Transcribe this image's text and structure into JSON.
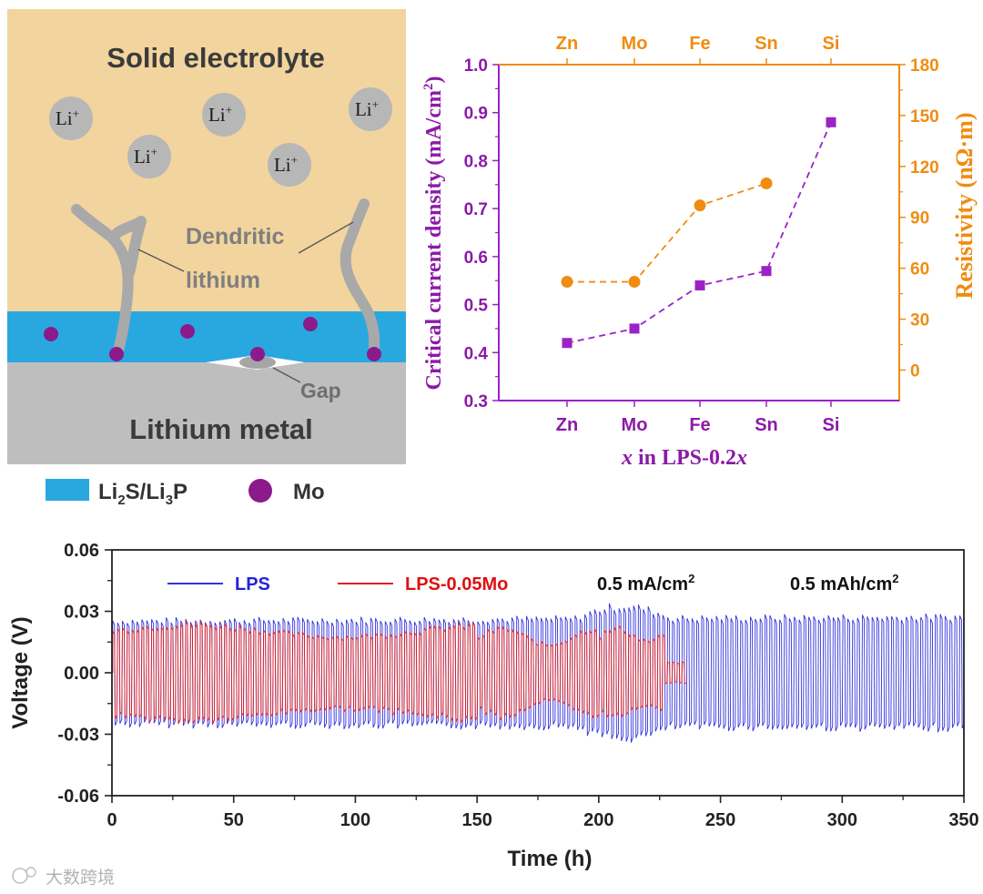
{
  "schematic": {
    "title": "Solid electrolyte",
    "ions": [
      "Li",
      "Li",
      "Li",
      "Li",
      "Li"
    ],
    "ion_charge": "+",
    "dendrite_label_1": "Dendritic",
    "dendrite_label_2": "lithium",
    "gap_label": "Gap",
    "metal_label": "Lithium metal",
    "legend_layer": {
      "parts": [
        "Li",
        "2",
        "S/Li",
        "3",
        "P"
      ]
    },
    "legend_dot": "Mo",
    "colors": {
      "electrolyte": "#f2d49e",
      "interlayer": "#29a8e0",
      "metal": "#bebebe",
      "dopant": "#8b1a8b",
      "ion": "#b7b7b7"
    }
  },
  "watermark": "大数跨境",
  "chart_data": [
    {
      "type": "scatter",
      "categories": [
        "Zn",
        "Mo",
        "Fe",
        "Sn",
        "Si"
      ],
      "top_categories": [
        "Zn",
        "Mo",
        "Fe",
        "Sn",
        "Si"
      ],
      "series": [
        {
          "name": "Critical current density",
          "axis": "left",
          "marker": "square",
          "color": "#9b22c7",
          "values": [
            0.42,
            0.45,
            0.54,
            0.57,
            0.88
          ]
        },
        {
          "name": "Resistivity",
          "axis": "right",
          "marker": "circle",
          "color": "#f08c10",
          "values": [
            52,
            52,
            97,
            110,
            null
          ]
        }
      ],
      "xlabel": {
        "italic": "x",
        "text": " in LPS-0.2",
        "italic2": "x"
      },
      "ylabel_left": "Critical current density (mA/cm",
      "ylabel_left_sup": "2",
      "ylabel_left_end": ")",
      "ylabel_right": "Resistivity (nΩ·m)",
      "ylim_left": [
        0.3,
        1.0
      ],
      "yticks_left": [
        "0.3",
        "0.4",
        "0.5",
        "0.6",
        "0.7",
        "0.8",
        "0.9",
        "1.0"
      ],
      "ylim_right": [
        -18,
        180
      ],
      "yticks_right": [
        "0",
        "30",
        "60",
        "90",
        "120",
        "150",
        "180"
      ]
    },
    {
      "type": "line",
      "title": "",
      "xlabel": "Time (h)",
      "ylabel": "Voltage (V)",
      "xlim": [
        0,
        350
      ],
      "ylim": [
        -0.06,
        0.06
      ],
      "xticks": [
        "0",
        "50",
        "100",
        "150",
        "200",
        "250",
        "300",
        "350"
      ],
      "yticks": [
        "0.06",
        "0.03",
        "0.00",
        "-0.03",
        "-0.06"
      ],
      "annotations": [
        "0.5 mA/cm",
        "2",
        "0.5 mAh/cm",
        "2"
      ],
      "series": [
        {
          "name": "LPS",
          "color": "#3333dd",
          "end_hours": 350,
          "amplitude_start": 0.025,
          "amplitude_end": 0.029,
          "peak": 0.033
        },
        {
          "name": "LPS-0.05Mo",
          "color": "#e02020",
          "end_hours": 236,
          "amplitude_start": 0.021,
          "amplitude_end": 0.005,
          "peak": 0.026
        }
      ]
    }
  ]
}
